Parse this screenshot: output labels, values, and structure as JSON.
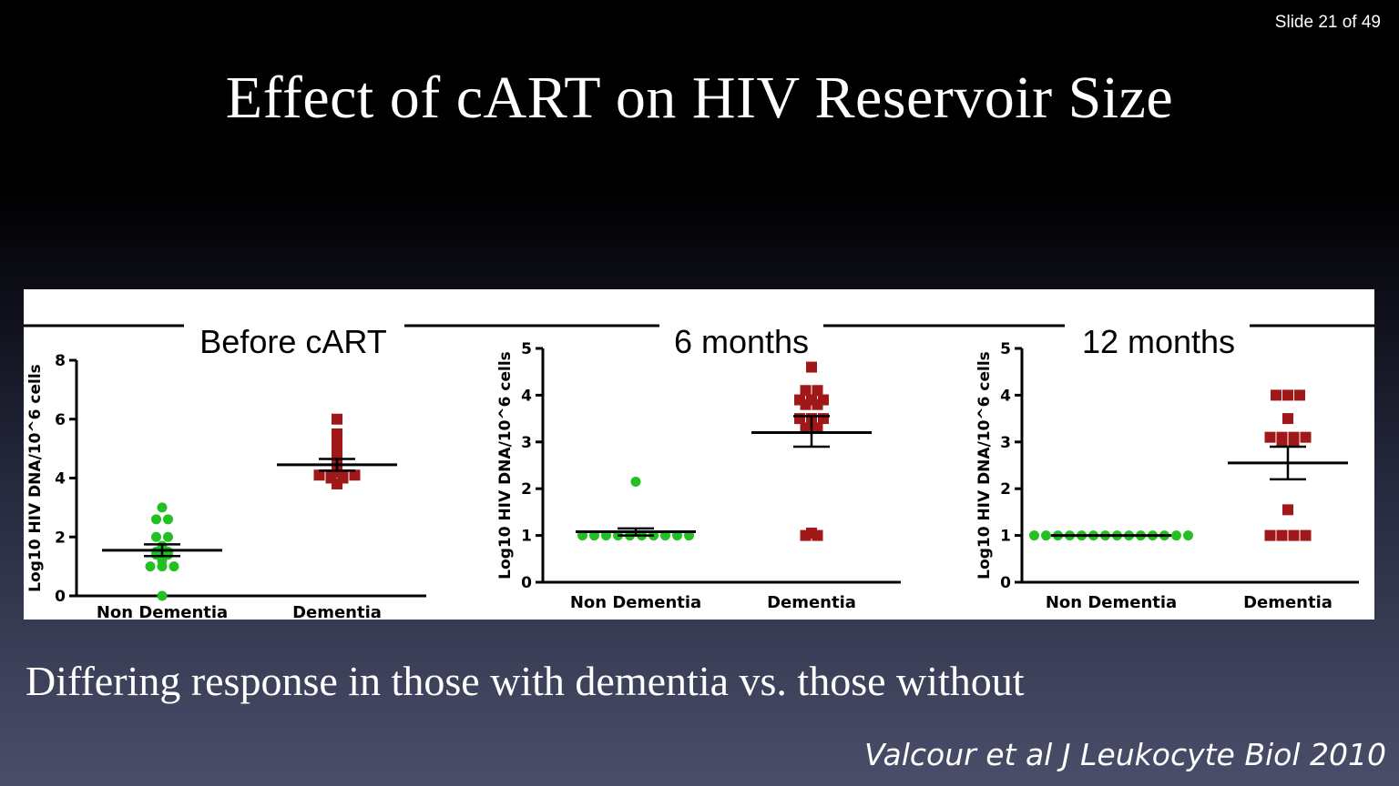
{
  "slide": {
    "counter": "Slide 21 of 49",
    "title": "Effect of cART on HIV Reservoir Size",
    "caption": "Differing response in those with dementia vs. those without",
    "citation": "Valcour et al J Leukocyte Biol 2010"
  },
  "colors": {
    "non_dementia": "#22c022",
    "dementia": "#a01818",
    "axis": "#000000"
  },
  "chart_data": [
    {
      "type": "scatter",
      "title": "Before cART",
      "ylabel": "Log10 HIV DNA/10^6 cells",
      "yticks": [
        0,
        2,
        4,
        6,
        8
      ],
      "ylim": [
        0,
        8
      ],
      "categories": [
        "Non Dementia",
        "Dementia"
      ],
      "series": [
        {
          "name": "Non Dementia",
          "marker": "circle",
          "values": [
            3.0,
            2.6,
            2.6,
            2.0,
            2.0,
            1.7,
            1.6,
            1.5,
            1.5,
            1.4,
            1.4,
            1.3,
            1.2,
            1.0,
            1.0,
            1.0,
            0.0
          ],
          "mean": 1.55,
          "sem": [
            1.35,
            1.75
          ]
        },
        {
          "name": "Dementia",
          "marker": "square",
          "values": [
            6.0,
            5.5,
            5.2,
            5.0,
            4.8,
            4.6,
            4.5,
            4.4,
            4.3,
            4.2,
            4.1,
            4.1,
            4.1,
            4.1,
            4.0,
            4.0,
            3.8
          ],
          "mean": 4.45,
          "sem": [
            4.25,
            4.65
          ]
        }
      ]
    },
    {
      "type": "scatter",
      "title": "6 months",
      "ylabel": "Log10 HIV DNA/10^6 cells",
      "yticks": [
        0,
        1,
        2,
        3,
        4,
        5
      ],
      "ylim": [
        0,
        5
      ],
      "categories": [
        "Non Dementia",
        "Dementia"
      ],
      "series": [
        {
          "name": "Non Dementia",
          "marker": "circle",
          "values": [
            2.15,
            1.0,
            1.0,
            1.0,
            1.0,
            1.0,
            1.0,
            1.0,
            1.0,
            1.0,
            1.0
          ],
          "mean": 1.08,
          "sem": [
            1.0,
            1.15
          ]
        },
        {
          "name": "Dementia",
          "marker": "square",
          "values": [
            4.6,
            4.1,
            4.1,
            3.9,
            3.9,
            3.9,
            3.8,
            3.8,
            3.5,
            3.5,
            3.5,
            3.3,
            3.3,
            1.05,
            1.0,
            1.0
          ],
          "mean": 3.2,
          "sem": [
            2.9,
            3.55
          ]
        }
      ]
    },
    {
      "type": "scatter",
      "title": "12 months",
      "ylabel": "Log10 HIV DNA/10^6 cells",
      "yticks": [
        0,
        1,
        2,
        3,
        4,
        5
      ],
      "ylim": [
        0,
        5
      ],
      "categories": [
        "Non Dementia",
        "Dementia"
      ],
      "series": [
        {
          "name": "Non Dementia",
          "marker": "circle",
          "values": [
            1.0,
            1.0,
            1.0,
            1.0,
            1.0,
            1.0,
            1.0,
            1.0,
            1.0,
            1.0,
            1.0,
            1.0,
            1.0,
            1.0
          ],
          "mean": 1.0,
          "sem": [
            1.0,
            1.0
          ]
        },
        {
          "name": "Dementia",
          "marker": "square",
          "values": [
            4.0,
            4.0,
            4.0,
            3.5,
            3.1,
            3.1,
            3.1,
            3.1,
            3.0,
            3.0,
            1.55,
            1.0,
            1.0,
            1.0,
            1.0
          ],
          "mean": 2.55,
          "sem": [
            2.2,
            2.9
          ]
        }
      ]
    }
  ]
}
